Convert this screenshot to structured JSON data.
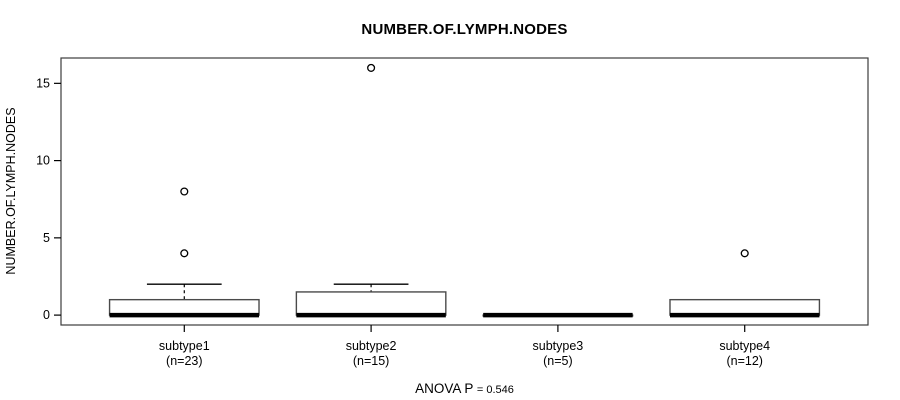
{
  "title": "NUMBER.OF.LYMPH.NODES",
  "y_axis": {
    "label": "NUMBER.OF.LYMPH.NODES"
  },
  "footer": {
    "anova_prefix": "ANOVA P",
    "anova_value": "= 0.546"
  },
  "colors": {
    "foreground": "#000000",
    "background": "#ffffff",
    "box_border": "#4a4a4a",
    "median": "#000000",
    "frame": "#3c3c3c"
  },
  "chart_data": {
    "type": "boxplot",
    "title": "NUMBER.OF.LYMPH.NODES",
    "xlabel": "",
    "ylabel": "NUMBER.OF.LYMPH.NODES",
    "ylim": [
      0,
      16
    ],
    "yticks": [
      0,
      5,
      10,
      15
    ],
    "grid": false,
    "annotation": "ANOVA P = 0.546",
    "groups": [
      {
        "label": "subtype1",
        "n_label": "(n=23)",
        "n": 23,
        "q1": 0,
        "median": 0,
        "q3": 1,
        "whisker_low": 0,
        "whisker_high": 2,
        "outliers": [
          4,
          8
        ]
      },
      {
        "label": "subtype2",
        "n_label": "(n=15)",
        "n": 15,
        "q1": 0,
        "median": 0,
        "q3": 1.5,
        "whisker_low": 0,
        "whisker_high": 2,
        "outliers": [
          16
        ]
      },
      {
        "label": "subtype3",
        "n_label": "(n=5)",
        "n": 5,
        "q1": 0,
        "median": 0,
        "q3": 0,
        "whisker_low": 0,
        "whisker_high": 0,
        "outliers": []
      },
      {
        "label": "subtype4",
        "n_label": "(n=12)",
        "n": 12,
        "q1": 0,
        "median": 0,
        "q3": 1,
        "whisker_low": 0,
        "whisker_high": 1,
        "outliers": [
          4
        ]
      }
    ]
  }
}
